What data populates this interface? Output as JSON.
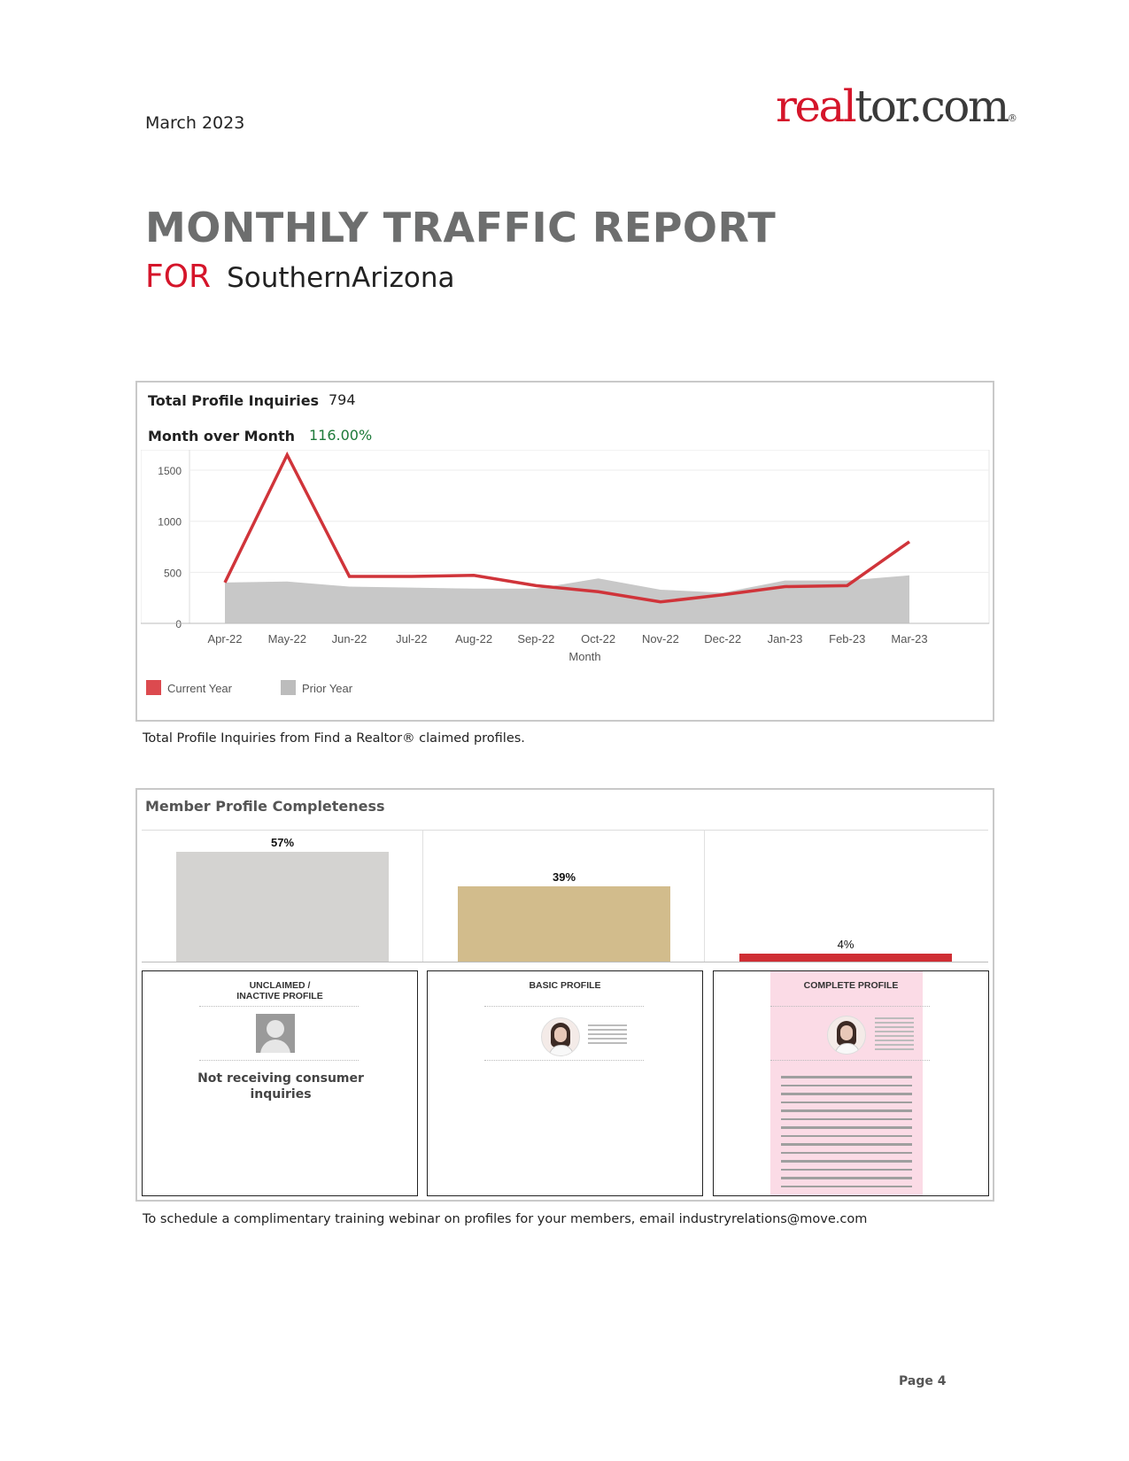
{
  "header": {
    "date": "March 2023",
    "logo": {
      "part_red": "real",
      "part_dark": "tor.com",
      "reg": "®"
    },
    "title": "MONTHLY TRAFFIC REPORT",
    "for_label": "FOR",
    "region": "SouthernArizona"
  },
  "inquiries_panel": {
    "total_label": "Total Profile Inquiries",
    "total_value": "794",
    "mom_label": "Month over Month",
    "mom_value": "116.00%",
    "caption": "Total Profile Inquiries from Find a Realtor® claimed profiles."
  },
  "chart_data": {
    "type": "area",
    "categories": [
      "Apr-22",
      "May-22",
      "Jun-22",
      "Jul-22",
      "Aug-22",
      "Sep-22",
      "Oct-22",
      "Nov-22",
      "Dec-22",
      "Jan-23",
      "Feb-23",
      "Mar-23"
    ],
    "xlabel": "Month",
    "ylabel": "",
    "ylim": [
      0,
      1700
    ],
    "yticks": [
      0,
      500,
      1000,
      1500
    ],
    "grid": true,
    "legend_position": "bottom-left",
    "series": [
      {
        "name": "Current Year",
        "type": "line",
        "color": "#d0343a",
        "values": [
          400,
          1650,
          460,
          460,
          470,
          370,
          310,
          210,
          280,
          360,
          370,
          800
        ]
      },
      {
        "name": "Prior Year",
        "type": "area",
        "color": "#c8c8c8",
        "values": [
          400,
          410,
          360,
          350,
          340,
          340,
          440,
          330,
          300,
          420,
          420,
          470
        ]
      }
    ]
  },
  "completeness_panel": {
    "title": "Member Profile Completeness",
    "bars": [
      {
        "label": "57%",
        "value": 57,
        "color": "#d4d3d1"
      },
      {
        "label": "39%",
        "value": 39,
        "color": "#d2bc8c"
      },
      {
        "label": "4%",
        "value": 4,
        "color": "#cf2e34"
      }
    ],
    "cards": [
      {
        "title": "UNCLAIMED / INACTIVE PROFILE",
        "note": "Not receiving consumer inquiries"
      },
      {
        "title": "BASIC PROFILE"
      },
      {
        "title": "COMPLETE PROFILE"
      }
    ],
    "caption": "To schedule a complimentary training webinar on profiles for your members, email industryrelations@move.com"
  },
  "footer": {
    "page": "Page 4"
  }
}
